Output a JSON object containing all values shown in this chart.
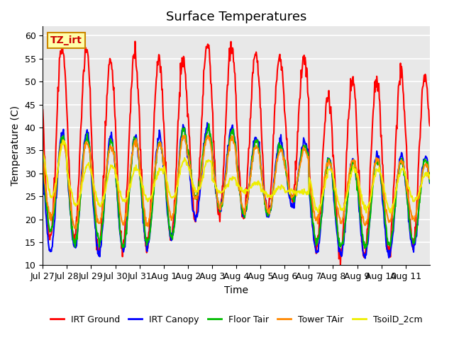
{
  "title": "Surface Temperatures",
  "xlabel": "Time",
  "ylabel": "Temperature (C)",
  "ylim": [
    10,
    62
  ],
  "yticks": [
    10,
    15,
    20,
    25,
    30,
    35,
    40,
    45,
    50,
    55,
    60
  ],
  "x_labels": [
    "Jul 27",
    "Jul 28",
    "Jul 29",
    "Jul 30",
    "Jul 31",
    "Aug 1",
    "Aug 2",
    "Aug 3",
    "Aug 4",
    "Aug 5",
    "Aug 6",
    "Aug 7",
    "Aug 8",
    "Aug 9",
    "Aug 10",
    "Aug 11"
  ],
  "series": {
    "IRT Ground": {
      "color": "#ff0000",
      "lw": 1.5
    },
    "IRT Canopy": {
      "color": "#0000ff",
      "lw": 1.5
    },
    "Floor Tair": {
      "color": "#00bb00",
      "lw": 1.5
    },
    "Tower TAir": {
      "color": "#ff8800",
      "lw": 1.5
    },
    "TsoilD_2cm": {
      "color": "#eeee00",
      "lw": 1.5
    }
  },
  "annotation_text": "TZ_irt",
  "annotation_color": "#cc0000",
  "annotation_bg": "#ffffaa",
  "annotation_border": "#cc8800",
  "background_color": "#e8e8e8",
  "grid_color": "#ffffff",
  "title_fontsize": 13,
  "axis_fontsize": 10,
  "tick_fontsize": 9,
  "legend_fontsize": 9
}
